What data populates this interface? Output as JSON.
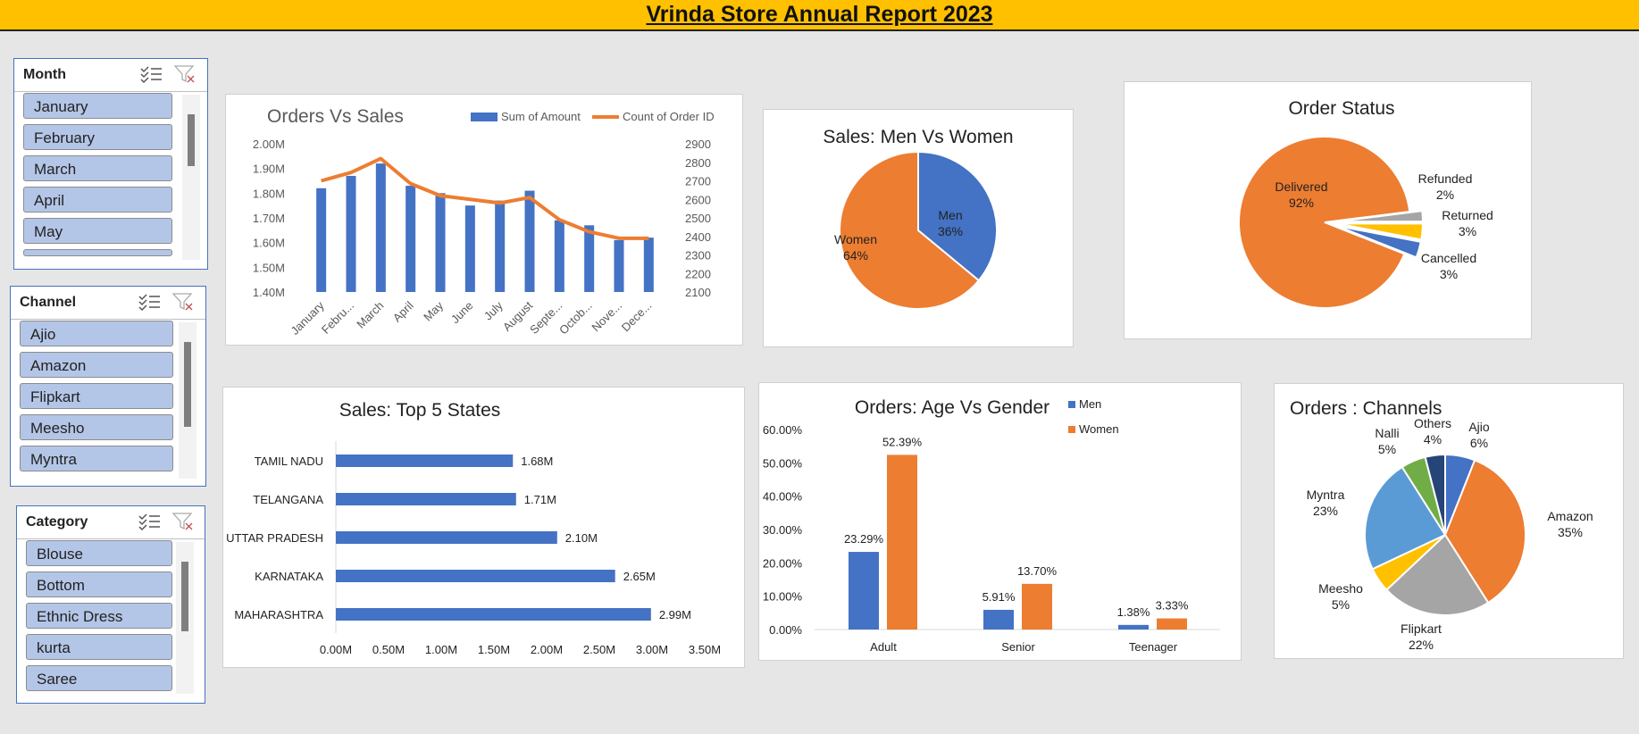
{
  "report_title": "Vrinda Store Annual Report 2023",
  "slicers": {
    "month": {
      "title": "Month",
      "items": [
        "January",
        "February",
        "March",
        "April",
        "May"
      ]
    },
    "channel": {
      "title": "Channel",
      "items": [
        "Ajio",
        "Amazon",
        "Flipkart",
        "Meesho",
        "Myntra"
      ]
    },
    "category": {
      "title": "Category",
      "items": [
        "Blouse",
        "Bottom",
        "Ethnic Dress",
        "kurta",
        "Saree"
      ]
    }
  },
  "icons": {
    "multi_select": "multi-select-icon",
    "clear_filter": "clear-filter-icon"
  },
  "colors": {
    "blue": "#4472c4",
    "orange": "#ed7d31",
    "gray": "#a5a5a5",
    "gold": "#ffc000",
    "light_blue": "#5b9bd5",
    "green": "#70ad47",
    "navy": "#264478",
    "slicer_item": "#b4c6e7",
    "header": "#ffc000"
  },
  "chart_data": [
    {
      "id": "orders_vs_sales",
      "type": "bar",
      "title": "Orders Vs Sales",
      "categories": [
        "January",
        "Febru...",
        "March",
        "April",
        "May",
        "June",
        "July",
        "August",
        "Septe...",
        "Octob...",
        "Nove...",
        "Dece..."
      ],
      "series": [
        {
          "name": "Sum of Amount",
          "type": "bar",
          "axis": "left",
          "values": [
            1.82,
            1.87,
            1.92,
            1.83,
            1.8,
            1.75,
            1.77,
            1.81,
            1.69,
            1.67,
            1.61,
            1.62
          ]
        },
        {
          "name": "Count of Order ID",
          "type": "line",
          "axis": "right",
          "values": [
            2700,
            2745,
            2820,
            2685,
            2620,
            2600,
            2580,
            2610,
            2490,
            2425,
            2390,
            2390
          ]
        }
      ],
      "y_left": {
        "min": 1.4,
        "max": 2.0,
        "ticks": [
          "2.00M",
          "1.90M",
          "1.80M",
          "1.70M",
          "1.60M",
          "1.50M",
          "1.40M"
        ]
      },
      "y_right": {
        "min": 2100,
        "max": 2900,
        "ticks": [
          "2900",
          "2800",
          "2700",
          "2600",
          "2500",
          "2400",
          "2300",
          "2200",
          "2100"
        ]
      },
      "legend": "top-right"
    },
    {
      "id": "men_vs_women",
      "type": "pie",
      "title": "Sales: Men Vs Women",
      "slices": [
        {
          "label": "Men",
          "value": 36,
          "pct": "36%"
        },
        {
          "label": "Women",
          "value": 64,
          "pct": "64%"
        }
      ]
    },
    {
      "id": "order_status",
      "type": "pie",
      "title": "Order Status",
      "slices": [
        {
          "label": "Delivered",
          "value": 92,
          "pct": "92%"
        },
        {
          "label": "Refunded",
          "value": 2,
          "pct": "2%"
        },
        {
          "label": "Returned",
          "value": 3,
          "pct": "3%"
        },
        {
          "label": "Cancelled",
          "value": 3,
          "pct": "3%"
        }
      ]
    },
    {
      "id": "top_states",
      "type": "bar",
      "orientation": "horizontal",
      "title": "Sales: Top 5 States",
      "categories": [
        "TAMIL NADU",
        "TELANGANA",
        "UTTAR PRADESH",
        "KARNATAKA",
        "MAHARASHTRA"
      ],
      "values": [
        1.68,
        1.71,
        2.1,
        2.65,
        2.99
      ],
      "value_labels": [
        "1.68M",
        "1.71M",
        "2.10M",
        "2.65M",
        "2.99M"
      ],
      "x_ticks": [
        "0.00M",
        "0.50M",
        "1.00M",
        "1.50M",
        "2.00M",
        "2.50M",
        "3.00M",
        "3.50M"
      ],
      "xlim": [
        0,
        3.5
      ]
    },
    {
      "id": "age_vs_gender",
      "type": "bar",
      "title": "Orders: Age Vs Gender",
      "categories": [
        "Adult",
        "Senior",
        "Teenager"
      ],
      "series": [
        {
          "name": "Men",
          "values": [
            23.29,
            5.91,
            1.38
          ],
          "labels": [
            "23.29%",
            "5.91%",
            "1.38%"
          ]
        },
        {
          "name": "Women",
          "values": [
            52.39,
            13.7,
            3.33
          ],
          "labels": [
            "52.39%",
            "13.70%",
            "3.33%"
          ]
        }
      ],
      "y_ticks": [
        "60.00%",
        "50.00%",
        "40.00%",
        "30.00%",
        "20.00%",
        "10.00%",
        "0.00%"
      ],
      "ylim": [
        0,
        60
      ],
      "legend": "top-right"
    },
    {
      "id": "channels",
      "type": "pie",
      "title": "Orders : Channels",
      "slices": [
        {
          "label": "Ajio",
          "value": 6,
          "pct": "6%"
        },
        {
          "label": "Amazon",
          "value": 35,
          "pct": "35%"
        },
        {
          "label": "Flipkart",
          "value": 22,
          "pct": "22%"
        },
        {
          "label": "Meesho",
          "value": 5,
          "pct": "5%"
        },
        {
          "label": "Myntra",
          "value": 23,
          "pct": "23%"
        },
        {
          "label": "Nalli",
          "value": 5,
          "pct": "5%"
        },
        {
          "label": "Others",
          "value": 4,
          "pct": "4%"
        }
      ]
    }
  ]
}
